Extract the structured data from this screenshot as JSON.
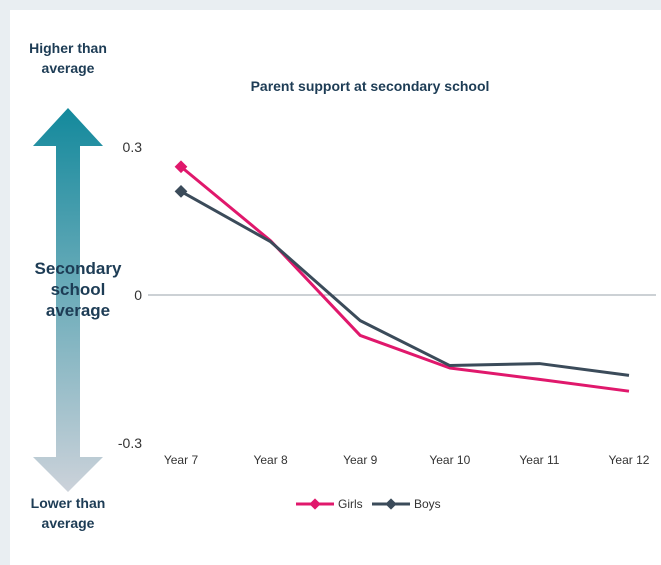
{
  "scale": {
    "top_label": "Higher than average",
    "middle_label": "Secondary school average",
    "bottom_label": "Lower than average",
    "arrow_color_top": "#13899c",
    "arrow_color_bottom": "#ccd2da"
  },
  "chart_data": {
    "type": "line",
    "title": "Parent support at secondary school",
    "categories": [
      "Year 7",
      "Year 8",
      "Year 9",
      "Year 10",
      "Year 11",
      "Year 12"
    ],
    "ylim": [
      -0.3,
      0.3
    ],
    "yticks": [
      {
        "value": 0.3,
        "label": "0.3"
      },
      {
        "value": 0,
        "label": "0"
      },
      {
        "value": -0.3,
        "label": "-0.3"
      }
    ],
    "series": [
      {
        "name": "Girls",
        "color": "#e0186c",
        "values": [
          0.26,
          0.11,
          -0.082,
          -0.148,
          -0.171,
          -0.195
        ]
      },
      {
        "name": "Boys",
        "color": "#3b4b5a",
        "values": [
          0.21,
          0.108,
          -0.052,
          -0.143,
          -0.139,
          -0.163
        ]
      }
    ],
    "legend_position": "bottom",
    "zero_line": true
  }
}
